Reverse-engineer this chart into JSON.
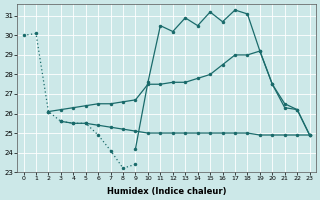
{
  "xlabel": "Humidex (Indice chaleur)",
  "bg_color": "#cce8e8",
  "line_color": "#1a6b6b",
  "grid_color": "#ffffff",
  "xlim": [
    -0.5,
    23.5
  ],
  "ylim": [
    23,
    31.6
  ],
  "yticks": [
    23,
    24,
    25,
    26,
    27,
    28,
    29,
    30,
    31
  ],
  "xticks": [
    0,
    1,
    2,
    3,
    4,
    5,
    6,
    7,
    8,
    9,
    10,
    11,
    12,
    13,
    14,
    15,
    16,
    17,
    18,
    19,
    20,
    21,
    22,
    23
  ],
  "lines": [
    {
      "x": [
        0,
        1,
        2,
        3,
        4,
        5,
        6,
        7,
        8,
        9
      ],
      "y": [
        30.0,
        30.1,
        26.1,
        25.6,
        25.5,
        25.5,
        24.9,
        24.1,
        23.2,
        23.4
      ],
      "linestyle": "dotted",
      "lw": 0.9
    },
    {
      "x": [
        3,
        4,
        5,
        6,
        7,
        8,
        9,
        10,
        11,
        12,
        13,
        14,
        15,
        16,
        17,
        18,
        19,
        20,
        21,
        22,
        23
      ],
      "y": [
        25.6,
        25.5,
        25.5,
        25.4,
        25.3,
        25.2,
        25.1,
        25.0,
        25.0,
        25.0,
        25.0,
        25.0,
        25.0,
        25.0,
        25.0,
        25.0,
        24.9,
        24.9,
        24.9,
        24.9,
        24.9
      ],
      "linestyle": "solid",
      "lw": 0.9
    },
    {
      "x": [
        2,
        3,
        4,
        5,
        6,
        7,
        8,
        9,
        10,
        11,
        12,
        13,
        14,
        15,
        16,
        17,
        18,
        19,
        20,
        21,
        22,
        23
      ],
      "y": [
        26.1,
        26.2,
        26.3,
        26.4,
        26.5,
        26.5,
        26.6,
        26.7,
        27.5,
        27.5,
        27.6,
        27.6,
        27.8,
        28.0,
        28.5,
        29.0,
        29.0,
        29.2,
        27.5,
        26.5,
        26.2,
        24.9
      ],
      "linestyle": "solid",
      "lw": 0.9
    },
    {
      "x": [
        9,
        10,
        11,
        12,
        13,
        14,
        15,
        16,
        17,
        18,
        19,
        20,
        21,
        22,
        23
      ],
      "y": [
        24.2,
        27.6,
        30.5,
        30.2,
        30.9,
        30.5,
        31.2,
        30.7,
        31.3,
        31.1,
        29.2,
        27.5,
        26.3,
        26.2,
        24.9
      ],
      "linestyle": "solid",
      "lw": 0.9
    }
  ]
}
